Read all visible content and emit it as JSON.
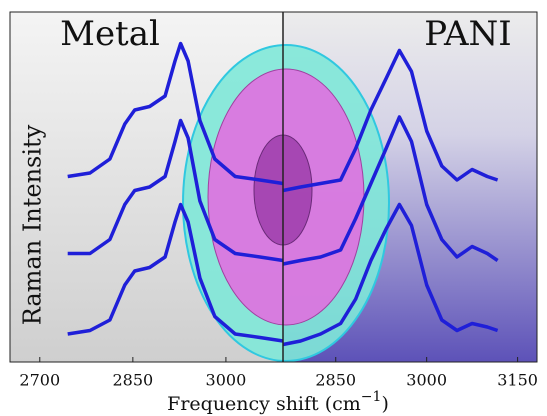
{
  "chart_data": [
    {
      "type": "line",
      "title": "Metal",
      "ylabel": "Raman Intensity",
      "xlabel": [
        "Frequency shift (cm",
        "−1",
        ")"
      ],
      "xlim": [
        2652,
        3092
      ],
      "xticks": [
        2700,
        2850,
        3000
      ],
      "ylim": [
        0,
        10
      ],
      "x": [
        2745,
        2781,
        2813,
        2837,
        2853,
        2877,
        2902,
        2918,
        2927,
        2939,
        2958,
        2982,
        3015,
        3055,
        3092
      ],
      "series": [
        {
          "color": "#1f1fd8",
          "values": [
            5.3,
            5.4,
            5.8,
            6.8,
            7.2,
            7.3,
            7.6,
            8.6,
            9.1,
            8.6,
            6.9,
            5.8,
            5.3,
            5.2,
            5.1
          ]
        },
        {
          "color": "#1f1fd8",
          "values": [
            3.1,
            3.1,
            3.5,
            4.5,
            4.9,
            5.0,
            5.3,
            6.3,
            6.9,
            6.4,
            4.6,
            3.5,
            3.1,
            3.0,
            2.9
          ]
        },
        {
          "color": "#1f1fd8",
          "values": [
            0.8,
            0.9,
            1.2,
            2.2,
            2.6,
            2.7,
            3.0,
            4.0,
            4.5,
            4.0,
            2.4,
            1.3,
            0.8,
            0.7,
            0.6
          ]
        }
      ]
    },
    {
      "type": "line",
      "title": "PANI",
      "xlim": [
        2763,
        3182
      ],
      "xticks": [
        2850,
        3000,
        3150
      ],
      "ylim": [
        0,
        10
      ],
      "x": [
        2763,
        2792,
        2825,
        2858,
        2883,
        2908,
        2933,
        2955,
        2975,
        3000,
        3025,
        3050,
        3075,
        3100,
        3117
      ],
      "series": [
        {
          "color": "#1f1fd8",
          "values": [
            4.9,
            5.0,
            5.1,
            5.2,
            6.1,
            7.2,
            8.1,
            8.9,
            8.3,
            6.6,
            5.6,
            5.2,
            5.5,
            5.3,
            5.2
          ]
        },
        {
          "color": "#1f1fd8",
          "values": [
            2.8,
            2.9,
            3.0,
            3.2,
            4.1,
            5.1,
            6.1,
            7.0,
            6.3,
            4.5,
            3.5,
            3.0,
            3.3,
            3.1,
            2.9
          ]
        },
        {
          "color": "#1f1fd8",
          "values": [
            0.5,
            0.6,
            0.8,
            1.1,
            1.8,
            2.9,
            3.8,
            4.5,
            3.9,
            2.2,
            1.2,
            0.9,
            1.1,
            1.0,
            0.9
          ]
        }
      ]
    }
  ]
}
